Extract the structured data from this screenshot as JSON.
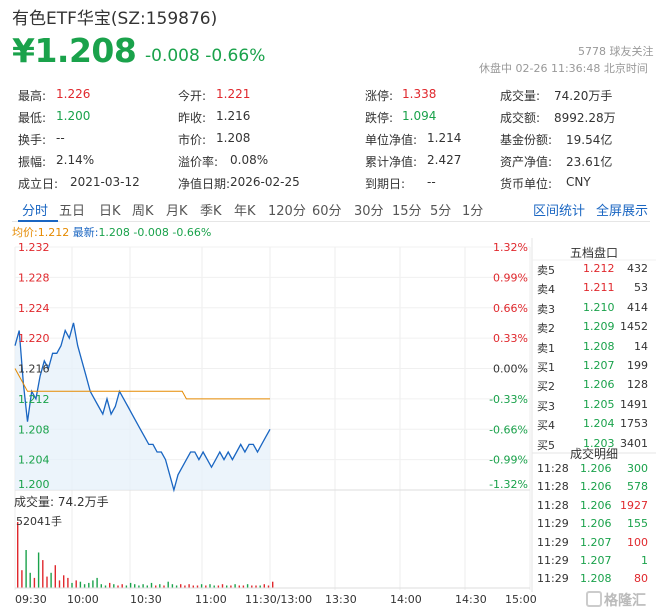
{
  "header": {
    "title": "有色ETF华宝(SZ:159876)",
    "price": "¥1.208",
    "change": "-0.008 -0.66%",
    "fans": "5778 球友关注",
    "status": "休盘中 02-26 11:36:48 北京时间"
  },
  "quote": [
    [
      {
        "label": "最高:",
        "value": "1.226",
        "color": "red"
      },
      {
        "label": "今开:",
        "value": "1.221",
        "color": "red"
      },
      {
        "label": "涨停:",
        "value": "1.338",
        "color": "red"
      },
      {
        "label": "成交量:",
        "value": "74.20万手",
        "color": ""
      }
    ],
    [
      {
        "label": "最低:",
        "value": "1.200",
        "color": "green"
      },
      {
        "label": "昨收:",
        "value": "1.216",
        "color": ""
      },
      {
        "label": "跌停:",
        "value": "1.094",
        "color": "green"
      },
      {
        "label": "成交额:",
        "value": "8992.28万",
        "color": ""
      }
    ],
    [
      {
        "label": "换手:",
        "value": "--",
        "color": ""
      },
      {
        "label": "市价:",
        "value": "1.208",
        "color": ""
      },
      {
        "label": "单位净值:",
        "value": "1.214",
        "color": ""
      },
      {
        "label": "基金份额:",
        "value": "19.54亿",
        "color": ""
      }
    ],
    [
      {
        "label": "振幅:",
        "value": "2.14%",
        "color": ""
      },
      {
        "label": "溢价率:",
        "value": "0.08%",
        "color": ""
      },
      {
        "label": "累计净值:",
        "value": "2.427",
        "color": ""
      },
      {
        "label": "资产净值:",
        "value": "23.61亿",
        "color": ""
      }
    ],
    [
      {
        "label": "成立日:",
        "value": "2021-03-12",
        "color": ""
      },
      {
        "label": "净值日期:",
        "value": "2026-02-25",
        "color": ""
      },
      {
        "label": "到期日:",
        "value": "--",
        "color": ""
      },
      {
        "label": "货币单位:",
        "value": "CNY",
        "color": ""
      }
    ]
  ],
  "tabs": [
    "分时",
    "五日",
    "日K",
    "周K",
    "月K",
    "季K",
    "年K",
    "120分",
    "60分",
    "30分",
    "15分",
    "5分",
    "1分"
  ],
  "active_tab": "分时",
  "tab_actions": [
    "区间统计",
    "全屏展示"
  ],
  "legend": {
    "avg_label": "均价:",
    "avg_value": "1.212",
    "latest_label": "最新:",
    "latest_value": "1.208 -0.008 -0.66%"
  },
  "order_book": {
    "title": "五档盘口",
    "rows": [
      {
        "side": "卖5",
        "price": "1.212",
        "vol": "432",
        "color": "red"
      },
      {
        "side": "卖4",
        "price": "1.211",
        "vol": "53",
        "color": "red"
      },
      {
        "side": "卖3",
        "price": "1.210",
        "vol": "414",
        "color": "green"
      },
      {
        "side": "卖2",
        "price": "1.209",
        "vol": "1452",
        "color": "green"
      },
      {
        "side": "卖1",
        "price": "1.208",
        "vol": "14",
        "color": "green"
      },
      {
        "side": "买1",
        "price": "1.207",
        "vol": "199",
        "color": "green"
      },
      {
        "side": "买2",
        "price": "1.206",
        "vol": "128",
        "color": "green"
      },
      {
        "side": "买3",
        "price": "1.205",
        "vol": "1491",
        "color": "green"
      },
      {
        "side": "买4",
        "price": "1.204",
        "vol": "1753",
        "color": "green"
      },
      {
        "side": "买5",
        "price": "1.203",
        "vol": "3401",
        "color": "green"
      }
    ]
  },
  "trades": {
    "title": "成交明细",
    "rows": [
      {
        "time": "11:28",
        "price": "1.206",
        "vol": "300",
        "vcolor": "green"
      },
      {
        "time": "11:28",
        "price": "1.206",
        "vol": "578",
        "vcolor": "green"
      },
      {
        "time": "11:28",
        "price": "1.206",
        "vol": "1927",
        "vcolor": "red"
      },
      {
        "time": "11:29",
        "price": "1.206",
        "vol": "155",
        "vcolor": "green"
      },
      {
        "time": "11:29",
        "price": "1.207",
        "vol": "100",
        "vcolor": "red"
      },
      {
        "time": "11:29",
        "price": "1.207",
        "vol": "1",
        "vcolor": "green"
      },
      {
        "time": "11:29",
        "price": "1.208",
        "vol": "80",
        "vcolor": "red"
      }
    ]
  },
  "volume": {
    "label": "成交量: 74.2万手",
    "max_label": "52041手"
  },
  "logo": "格隆汇",
  "chart_data": {
    "type": "line",
    "y_ticks": [
      "1.232",
      "1.228",
      "1.224",
      "1.220",
      "1.216",
      "1.212",
      "1.208",
      "1.204",
      "1.200"
    ],
    "pct_ticks": [
      "1.32%",
      "0.99%",
      "0.66%",
      "0.33%",
      "0.00%",
      "-0.33%",
      "-0.66%",
      "-0.99%",
      "-1.32%"
    ],
    "ylim": [
      1.2,
      1.232
    ],
    "x_ticks": [
      "09:30",
      "10:00",
      "10:30",
      "11:00",
      "11:30/13:00",
      "13:30",
      "14:00",
      "14:30",
      "15:00"
    ],
    "prev_close": 1.216,
    "series": [
      {
        "name": "最新",
        "color": "#1a66c2",
        "values": [
          1.219,
          1.221,
          1.214,
          1.209,
          1.213,
          1.212,
          1.215,
          1.217,
          1.216,
          1.218,
          1.218,
          1.219,
          1.221,
          1.22,
          1.222,
          1.219,
          1.217,
          1.215,
          1.213,
          1.212,
          1.211,
          1.21,
          1.212,
          1.21,
          1.211,
          1.213,
          1.212,
          1.211,
          1.21,
          1.209,
          1.208,
          1.207,
          1.206,
          1.206,
          1.205,
          1.205,
          1.204,
          1.202,
          1.2,
          1.202,
          1.203,
          1.204,
          1.205,
          1.205,
          1.204,
          1.205,
          1.204,
          1.203,
          1.204,
          1.205,
          1.204,
          1.205,
          1.204,
          1.205,
          1.206,
          1.205,
          1.206,
          1.206,
          1.205,
          1.206,
          1.207,
          1.208
        ]
      },
      {
        "name": "均价",
        "color": "#e58a00",
        "values": [
          1.216,
          1.215,
          1.214,
          1.213,
          1.213,
          1.213,
          1.213,
          1.213,
          1.213,
          1.213,
          1.213,
          1.213,
          1.213,
          1.213,
          1.213,
          1.213,
          1.213,
          1.213,
          1.213,
          1.213,
          1.213,
          1.213,
          1.213,
          1.213,
          1.213,
          1.213,
          1.213,
          1.213,
          1.213,
          1.213,
          1.213,
          1.213,
          1.213,
          1.213,
          1.213,
          1.213,
          1.213,
          1.213,
          1.213,
          1.213,
          1.213,
          1.212,
          1.212,
          1.212,
          1.212,
          1.212,
          1.212,
          1.212,
          1.212,
          1.212,
          1.212,
          1.212,
          1.212,
          1.212,
          1.212,
          1.212,
          1.212,
          1.212,
          1.212,
          1.212,
          1.212,
          1.212
        ]
      }
    ],
    "volume_values": [
      52041,
      14000,
      30000,
      12000,
      8000,
      28000,
      22000,
      9000,
      12000,
      18000,
      6000,
      10000,
      8000,
      4000,
      6000,
      5000,
      3000,
      4000,
      6000,
      8000,
      3000,
      2000,
      4000,
      3000,
      2000,
      3000,
      2000,
      4000,
      3000,
      2000,
      3000,
      2000,
      4000,
      2000,
      3000,
      2000,
      5000,
      3000,
      2000,
      3000,
      2000,
      3000,
      2000,
      2000,
      3000,
      2000,
      3000,
      2000,
      2000,
      3000,
      2000,
      2000,
      3000,
      2000,
      2000,
      3000,
      2000,
      2000,
      2000,
      3000,
      2000,
      5000
    ]
  }
}
